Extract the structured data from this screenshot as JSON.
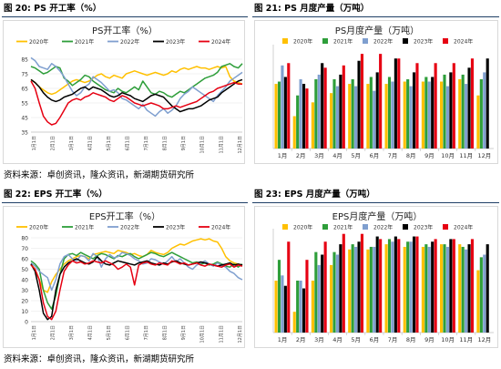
{
  "figures": [
    {
      "label": "图 20:",
      "title": "PS 开工率（%）"
    },
    {
      "label": "图 21:",
      "title": "PS 月度产量（万吨）"
    },
    {
      "label": "图 22:",
      "title": "EPS 开工率（%）"
    },
    {
      "label": "图 23:",
      "title": "EPS 月度产量（万吨）"
    }
  ],
  "sources": [
    "资料来源：卓创资讯，隆众资讯，新湖期货研究所",
    "资料来源：卓创资讯，隆众资讯，新湖期货研究所"
  ],
  "series_colors": {
    "2020年": "#ffc000",
    "2021年": "#2e9e3a",
    "2022年": "#7f9fcf",
    "2023年": "#000000",
    "2024年": "#e60012"
  },
  "chart_data": [
    {
      "type": "line",
      "title": "PS开工率（%）",
      "ylim": [
        35,
        85
      ],
      "yticks": [
        35,
        45,
        55,
        65,
        75,
        85
      ],
      "xticks": [
        "1月1日",
        "2月1日",
        "3月1日",
        "4月1日",
        "5月1日",
        "6月1日",
        "7月1日",
        "8月1日",
        "9月1日",
        "10月1日",
        "11月1日",
        "12月1日"
      ],
      "x": [
        1,
        2,
        3,
        4,
        5,
        6,
        7,
        8,
        9,
        10,
        11,
        12,
        13,
        14,
        15,
        16,
        17,
        18,
        19,
        20,
        21,
        22,
        23,
        24,
        25,
        26,
        27,
        28,
        29,
        30,
        31,
        32,
        33,
        34,
        35,
        36,
        37,
        38,
        39,
        40,
        41,
        42,
        43,
        44,
        45,
        46,
        47,
        48,
        49,
        50,
        51,
        52
      ],
      "series": [
        {
          "name": "2020年",
          "values": [
            71,
            69,
            66,
            64,
            62,
            61,
            62,
            64,
            66,
            68,
            70,
            71,
            70,
            69,
            70,
            72,
            74,
            75,
            73,
            72,
            74,
            73,
            72,
            75,
            76,
            77,
            76,
            75,
            74,
            75,
            76,
            75,
            74,
            75,
            77,
            76,
            78,
            79,
            78,
            79,
            80,
            79,
            79,
            78,
            79,
            80,
            79,
            80,
            73,
            70,
            69,
            68
          ]
        },
        {
          "name": "2021年",
          "values": [
            80,
            79,
            77,
            75,
            76,
            78,
            80,
            79,
            72,
            70,
            67,
            69,
            71,
            74,
            73,
            70,
            68,
            66,
            64,
            63,
            62,
            65,
            63,
            62,
            64,
            66,
            64,
            70,
            66,
            62,
            61,
            63,
            62,
            60,
            59,
            61,
            63,
            62,
            64,
            66,
            68,
            70,
            72,
            73,
            74,
            76,
            80,
            81,
            82,
            80,
            79,
            82
          ]
        },
        {
          "name": "2022年",
          "values": [
            86,
            84,
            80,
            79,
            78,
            82,
            80,
            77,
            73,
            68,
            63,
            60,
            62,
            66,
            68,
            73,
            71,
            69,
            66,
            63,
            64,
            62,
            58,
            57,
            55,
            53,
            51,
            54,
            50,
            48,
            46,
            49,
            51,
            48,
            50,
            53,
            58,
            61,
            63,
            66,
            64,
            62,
            60,
            58,
            56,
            60,
            63,
            66,
            70,
            72,
            74,
            76
          ]
        },
        {
          "name": "2023年",
          "values": [
            71,
            69,
            66,
            62,
            59,
            57,
            56,
            57,
            59,
            60,
            61,
            63,
            65,
            66,
            64,
            66,
            65,
            64,
            62,
            60,
            59,
            60,
            62,
            61,
            60,
            58,
            57,
            56,
            58,
            60,
            61,
            60,
            59,
            56,
            53,
            51,
            49,
            50,
            51,
            51,
            52,
            53,
            55,
            57,
            58,
            59,
            62,
            64,
            66,
            68,
            70,
            71
          ]
        },
        {
          "name": "2024年",
          "values": [
            70,
            65,
            55,
            46,
            42,
            40,
            41,
            45,
            50,
            55,
            57,
            58,
            57,
            59,
            60,
            62,
            61,
            60,
            59,
            57,
            56,
            58,
            60,
            59,
            57,
            55,
            54,
            53,
            54,
            55,
            54,
            53,
            51,
            51,
            52,
            53,
            52,
            53,
            54,
            55,
            56,
            58,
            60,
            62,
            63,
            65,
            66,
            67,
            68,
            69,
            68,
            68
          ]
        }
      ]
    },
    {
      "type": "bar",
      "title": "PS月度产量（万吨）",
      "ylim": [
        0,
        45
      ],
      "categories": [
        "1月",
        "2月",
        "3月",
        "4月",
        "5月",
        "6月",
        "7月",
        "8月",
        "9月",
        "10月",
        "11月",
        "12月"
      ],
      "series": [
        {
          "name": "2020年",
          "values": [
            28,
            14,
            20,
            24,
            28,
            28,
            28,
            29,
            29,
            29,
            30,
            23
          ]
        },
        {
          "name": "2021年",
          "values": [
            29,
            23,
            30,
            30,
            30,
            31,
            31,
            30,
            31,
            32,
            32,
            30
          ]
        },
        {
          "name": "2022年",
          "values": [
            36,
            30,
            32,
            27,
            27,
            25,
            29,
            27,
            29,
            27,
            28,
            33
          ]
        },
        {
          "name": "2023年",
          "values": [
            31,
            28,
            37,
            32,
            38,
            33,
            39,
            33,
            31,
            33,
            35,
            39
          ]
        },
        {
          "name": "2024年",
          "values": [
            37,
            26,
            35,
            36,
            41,
            41,
            39,
            37,
            37,
            37,
            39,
            0
          ]
        }
      ]
    },
    {
      "type": "line",
      "title": "EPS开工率（%）",
      "ylim": [
        0,
        80
      ],
      "yticks": [
        0,
        10,
        20,
        30,
        40,
        50,
        60,
        70,
        80
      ],
      "xticks": [
        "1月1日",
        "2月1日",
        "3月1日",
        "4月1日",
        "5月1日",
        "6月1日",
        "7月1日",
        "8月1日",
        "9月1日",
        "10月1日",
        "11月1日",
        "12月1日"
      ],
      "x": [
        1,
        2,
        3,
        4,
        5,
        6,
        7,
        8,
        9,
        10,
        11,
        12,
        13,
        14,
        15,
        16,
        17,
        18,
        19,
        20,
        21,
        22,
        23,
        24,
        25,
        26,
        27,
        28,
        29,
        30,
        31,
        32,
        33,
        34,
        35,
        36,
        37,
        38,
        39,
        40,
        41,
        42,
        43,
        44,
        45,
        46,
        47,
        48,
        49,
        50,
        51,
        52
      ],
      "series": [
        {
          "name": "2020年",
          "values": [
            55,
            50,
            40,
            30,
            28,
            38,
            45,
            50,
            55,
            58,
            60,
            62,
            63,
            62,
            60,
            64,
            65,
            66,
            67,
            66,
            65,
            68,
            67,
            66,
            64,
            65,
            63,
            62,
            64,
            68,
            66,
            65,
            64,
            66,
            70,
            72,
            74,
            73,
            75,
            77,
            78,
            79,
            78,
            79,
            77,
            76,
            70,
            62,
            58,
            56,
            55,
            54
          ]
        },
        {
          "name": "2021年",
          "values": [
            58,
            55,
            50,
            30,
            18,
            12,
            25,
            45,
            60,
            64,
            65,
            63,
            66,
            64,
            62,
            60,
            63,
            65,
            64,
            62,
            60,
            63,
            62,
            64,
            65,
            62,
            60,
            62,
            64,
            66,
            65,
            63,
            62,
            64,
            66,
            64,
            62,
            60,
            58,
            56,
            57,
            55,
            56,
            54,
            55,
            57,
            55,
            53,
            52,
            55,
            52,
            55
          ]
        },
        {
          "name": "2022年",
          "values": [
            56,
            53,
            48,
            45,
            42,
            30,
            40,
            55,
            62,
            64,
            60,
            58,
            63,
            62,
            58,
            65,
            62,
            52,
            60,
            64,
            61,
            62,
            66,
            65,
            63,
            60,
            58,
            55,
            56,
            60,
            59,
            57,
            55,
            58,
            62,
            57,
            60,
            56,
            52,
            50,
            54,
            56,
            58,
            55,
            53,
            56,
            54,
            52,
            48,
            46,
            42,
            40
          ]
        },
        {
          "name": "2023年",
          "values": [
            55,
            48,
            30,
            8,
            2,
            5,
            30,
            45,
            52,
            56,
            58,
            60,
            58,
            56,
            55,
            57,
            62,
            58,
            55,
            54,
            56,
            58,
            57,
            56,
            55,
            54,
            56,
            57,
            58,
            56,
            55,
            54,
            56,
            55,
            57,
            58,
            56,
            55,
            54,
            55,
            56,
            57,
            56,
            55,
            54,
            53,
            54,
            55,
            56,
            54,
            55,
            54
          ]
        },
        {
          "name": "2024年",
          "values": [
            54,
            50,
            40,
            18,
            5,
            2,
            10,
            30,
            48,
            54,
            58,
            56,
            57,
            55,
            56,
            58,
            57,
            56,
            58,
            56,
            54,
            50,
            52,
            55,
            52,
            35,
            54,
            56,
            57,
            55,
            54,
            56,
            55,
            54,
            58,
            57,
            55,
            56,
            54,
            55,
            56,
            54,
            53,
            55,
            54,
            53,
            52,
            54,
            55,
            52,
            54,
            53
          ]
        }
      ]
    },
    {
      "type": "bar",
      "title": "EPS月度产量（万吨）",
      "ylim": [
        0,
        40
      ],
      "categories": [
        "1月",
        "2月",
        "3月",
        "4月",
        "5月",
        "6月",
        "7月",
        "8月",
        "9月",
        "10月",
        "11月",
        "12月"
      ],
      "series": [
        {
          "name": "2020年",
          "values": [
            20,
            8,
            20,
            26,
            32,
            32,
            34,
            33,
            33,
            34,
            34,
            24
          ]
        },
        {
          "name": "2021年",
          "values": [
            28,
            20,
            31,
            31,
            34,
            33,
            36,
            35,
            34,
            34,
            33,
            29
          ]
        },
        {
          "name": "2022年",
          "values": [
            22,
            20,
            26,
            30,
            33,
            33,
            35,
            35,
            33,
            33,
            32,
            30
          ]
        },
        {
          "name": "2023年",
          "values": [
            18,
            17,
            30,
            34,
            35,
            37,
            37,
            37,
            35,
            36,
            34,
            34
          ]
        },
        {
          "name": "2024年",
          "values": [
            35,
            28,
            35,
            38,
            38,
            36,
            36,
            37,
            36,
            36,
            36,
            0
          ]
        }
      ]
    }
  ]
}
